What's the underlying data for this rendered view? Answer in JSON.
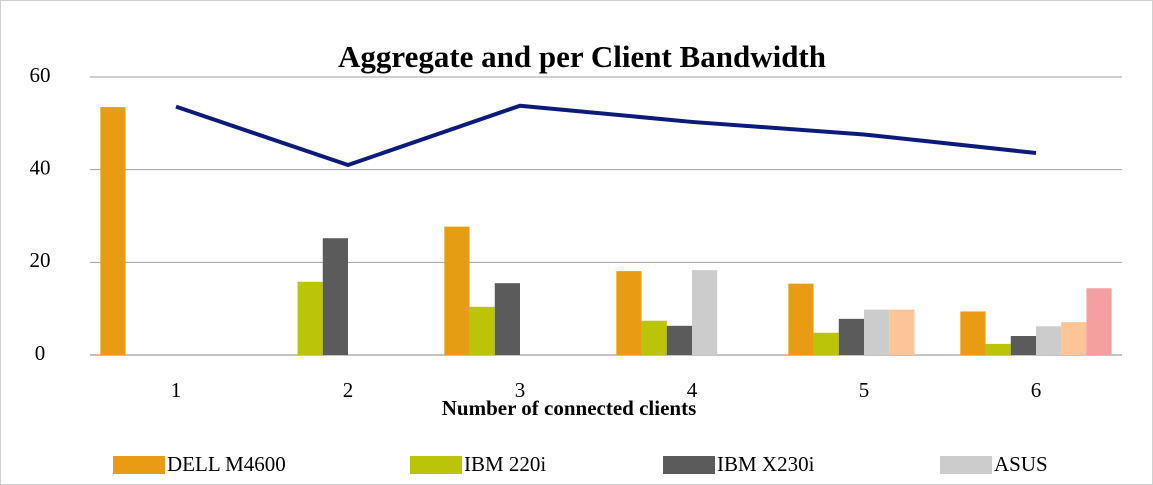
{
  "chart_data": {
    "type": "bar",
    "title": "Aggregate and per Client Bandwidth",
    "x_label": "Number of connected clients",
    "categories": [
      "1",
      "2",
      "3",
      "4",
      "5",
      "6"
    ],
    "ylim": [
      0,
      60
    ],
    "yticks": [
      0,
      20,
      40,
      60
    ],
    "grid": true,
    "series": [
      {
        "name": "DELL M4600",
        "color": "#e89c14",
        "values": [
          53.5,
          null,
          27.7,
          18.1,
          15.4,
          9.4
        ]
      },
      {
        "name": "IBM 220i",
        "color": "#bcc40a",
        "values": [
          null,
          15.8,
          10.4,
          7.4,
          4.8,
          2.4
        ]
      },
      {
        "name": "IBM X230i",
        "color": "#5b5b5b",
        "values": [
          null,
          25.2,
          15.5,
          6.3,
          7.8,
          4.1
        ]
      },
      {
        "name": "ASUS",
        "color": "#cccccc",
        "values": [
          null,
          null,
          null,
          18.3,
          9.8,
          6.2
        ]
      },
      {
        "color": "#fdc497",
        "values": [
          null,
          null,
          null,
          null,
          9.8,
          7.1
        ]
      },
      {
        "color": "#f4a0a0",
        "values": [
          null,
          null,
          null,
          null,
          null,
          14.4
        ]
      },
      {
        "type": "line",
        "color": "#0c1a7a",
        "values": [
          53.6,
          41.0,
          53.8,
          50.3,
          47.6,
          43.6
        ]
      }
    ]
  }
}
